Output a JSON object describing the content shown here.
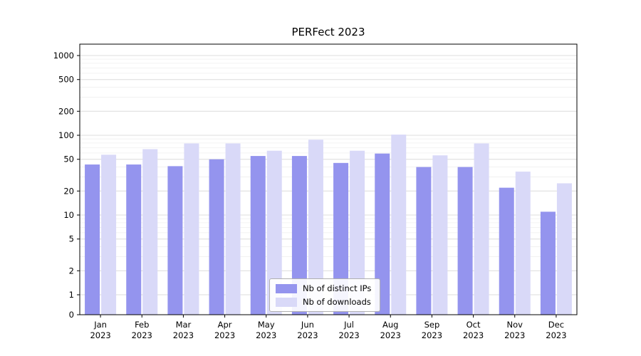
{
  "chart_data": {
    "type": "bar",
    "title": "PERFect 2023",
    "categories": [
      "Jan 2023",
      "Feb 2023",
      "Mar 2023",
      "Apr 2023",
      "May 2023",
      "Jun 2023",
      "Jul 2023",
      "Aug 2023",
      "Sep 2023",
      "Oct 2023",
      "Nov 2023",
      "Dec 2023"
    ],
    "series": [
      {
        "name": "Nb of distinct IPs",
        "color": "#9494ee",
        "values": [
          43,
          43,
          41,
          50,
          55,
          55,
          45,
          59,
          40,
          40,
          22,
          11
        ]
      },
      {
        "name": "Nb of downloads",
        "color": "#d9d9f8",
        "values": [
          57,
          67,
          79,
          79,
          64,
          88,
          64,
          102,
          56,
          79,
          35,
          25
        ]
      }
    ],
    "xlabel": "",
    "ylabel": "",
    "yscale": "symlog",
    "yticks": [
      0,
      1,
      2,
      5,
      10,
      20,
      50,
      100,
      200,
      500,
      1000
    ],
    "ylim": [
      0,
      1000
    ],
    "grid": "horizontal major and minor gridlines",
    "legend_position": "lower center"
  }
}
